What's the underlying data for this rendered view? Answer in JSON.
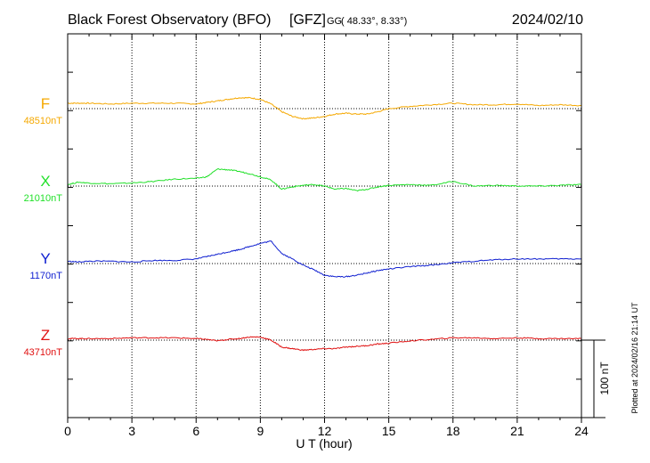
{
  "chart_data": {
    "type": "line",
    "title": "Black Forest Observatory (BFO)",
    "institute": "[GFZ]",
    "coord_system": "GG",
    "coordinates": "( 48.33°,   8.33°)",
    "date": "2024/02/10",
    "xlabel": "U T (hour)",
    "xlim": [
      0,
      24
    ],
    "xticks": [
      0,
      3,
      6,
      9,
      12,
      15,
      18,
      21,
      24
    ],
    "xtick_labels": [
      "0",
      "3",
      "6",
      "9",
      "12",
      "15",
      "18",
      "21",
      "24"
    ],
    "grid": true,
    "scale_label": "100 nT",
    "plotted_note": "Plotted at 2024/02/16 21:14 UT",
    "series": [
      {
        "name": "F",
        "baseline_label": "48510nT",
        "color": "#f5a800",
        "x": [
          0,
          0.5,
          1,
          2,
          3,
          4,
          5,
          6,
          6.5,
          7,
          7.5,
          8,
          8.5,
          9,
          9.5,
          10,
          10.5,
          11,
          11.5,
          12,
          12.5,
          13,
          13.5,
          14,
          14.5,
          15,
          16,
          17,
          18,
          19,
          20,
          21,
          22,
          23,
          24
        ],
        "values": [
          48517,
          48517,
          48517,
          48516,
          48517,
          48517,
          48517,
          48516,
          48518,
          48520,
          48522,
          48524,
          48524,
          48522,
          48516,
          48506,
          48500,
          48497,
          48498,
          48500,
          48503,
          48504,
          48503,
          48503,
          48506,
          48510,
          48513,
          48515,
          48517,
          48515,
          48515,
          48516,
          48514,
          48515,
          48514
        ]
      },
      {
        "name": "X",
        "baseline_label": "21010nT",
        "color": "#22e02a",
        "x": [
          0,
          0.5,
          1,
          2,
          3,
          4,
          5,
          6,
          6.5,
          7,
          7.5,
          8,
          8.5,
          9,
          9.5,
          10,
          10.5,
          11,
          11.5,
          12,
          12.5,
          13,
          13.5,
          14,
          14.5,
          15,
          16,
          17,
          18,
          19,
          20,
          21,
          22,
          23,
          24
        ],
        "values": [
          21012,
          21015,
          21014,
          21013,
          21014,
          21016,
          21019,
          21020,
          21022,
          21032,
          21031,
          21029,
          21026,
          21022,
          21018,
          21006,
          21009,
          21011,
          21012,
          21010,
          21006,
          21007,
          21004,
          21006,
          21009,
          21011,
          21012,
          21011,
          21016,
          21010,
          21011,
          21010,
          21010,
          21011,
          21012
        ]
      },
      {
        "name": "Y",
        "baseline_label": "1170nT",
        "color": "#1020d0",
        "x": [
          0,
          0.5,
          1,
          2,
          3,
          4,
          5,
          6,
          6.5,
          7,
          7.5,
          8,
          8.5,
          9,
          9.5,
          10,
          10.5,
          11,
          11.5,
          12,
          12.5,
          13,
          13.5,
          14,
          14.5,
          15,
          16,
          17,
          18,
          19,
          20,
          21,
          22,
          23,
          24
        ],
        "values": [
          1173,
          1172,
          1173,
          1173,
          1172,
          1174,
          1174,
          1176,
          1179,
          1182,
          1185,
          1188,
          1192,
          1196,
          1199,
          1183,
          1176,
          1168,
          1162,
          1155,
          1153,
          1153,
          1155,
          1158,
          1161,
          1163,
          1166,
          1168,
          1171,
          1173,
          1175,
          1176,
          1176,
          1176,
          1176
        ]
      },
      {
        "name": "Z",
        "baseline_label": "43710nT",
        "color": "#e01010",
        "x": [
          0,
          0.5,
          1,
          2,
          3,
          4,
          5,
          6,
          6.5,
          7,
          7.5,
          8,
          8.5,
          9,
          9.5,
          10,
          10.5,
          11,
          11.5,
          12,
          12.5,
          13,
          13.5,
          14,
          14.5,
          15,
          16,
          17,
          18,
          19,
          20,
          21,
          22,
          23,
          24
        ],
        "values": [
          43712,
          43712,
          43712,
          43712,
          43713,
          43713,
          43713,
          43712,
          43711,
          43709,
          43711,
          43712,
          43714,
          43714,
          43710,
          43701,
          43699,
          43697,
          43698,
          43699,
          43699,
          43701,
          43702,
          43703,
          43705,
          43706,
          43709,
          43711,
          43713,
          43713,
          43712,
          43713,
          43712,
          43712,
          43712
        ]
      }
    ]
  }
}
